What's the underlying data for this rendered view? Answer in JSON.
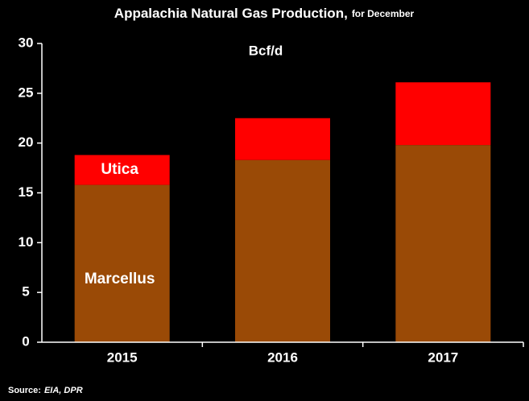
{
  "chart_data": {
    "type": "stacked_bar",
    "title": "Appalachia Natural Gas Production,",
    "subtitle": "for December",
    "unit_label": "Bcf/d",
    "source_label": "Source:",
    "source": "EIA, DPR",
    "categories": [
      "2015",
      "2016",
      "2017"
    ],
    "series": [
      {
        "name": "Marcellus",
        "color": "#9a4a06",
        "values": [
          15.8,
          18.3,
          19.8
        ]
      },
      {
        "name": "Utica",
        "color": "#ff0000",
        "values": [
          3.0,
          4.2,
          6.3
        ]
      }
    ],
    "ylim": [
      0,
      30
    ],
    "yticks": [
      0,
      5,
      10,
      15,
      20,
      25,
      30
    ]
  }
}
